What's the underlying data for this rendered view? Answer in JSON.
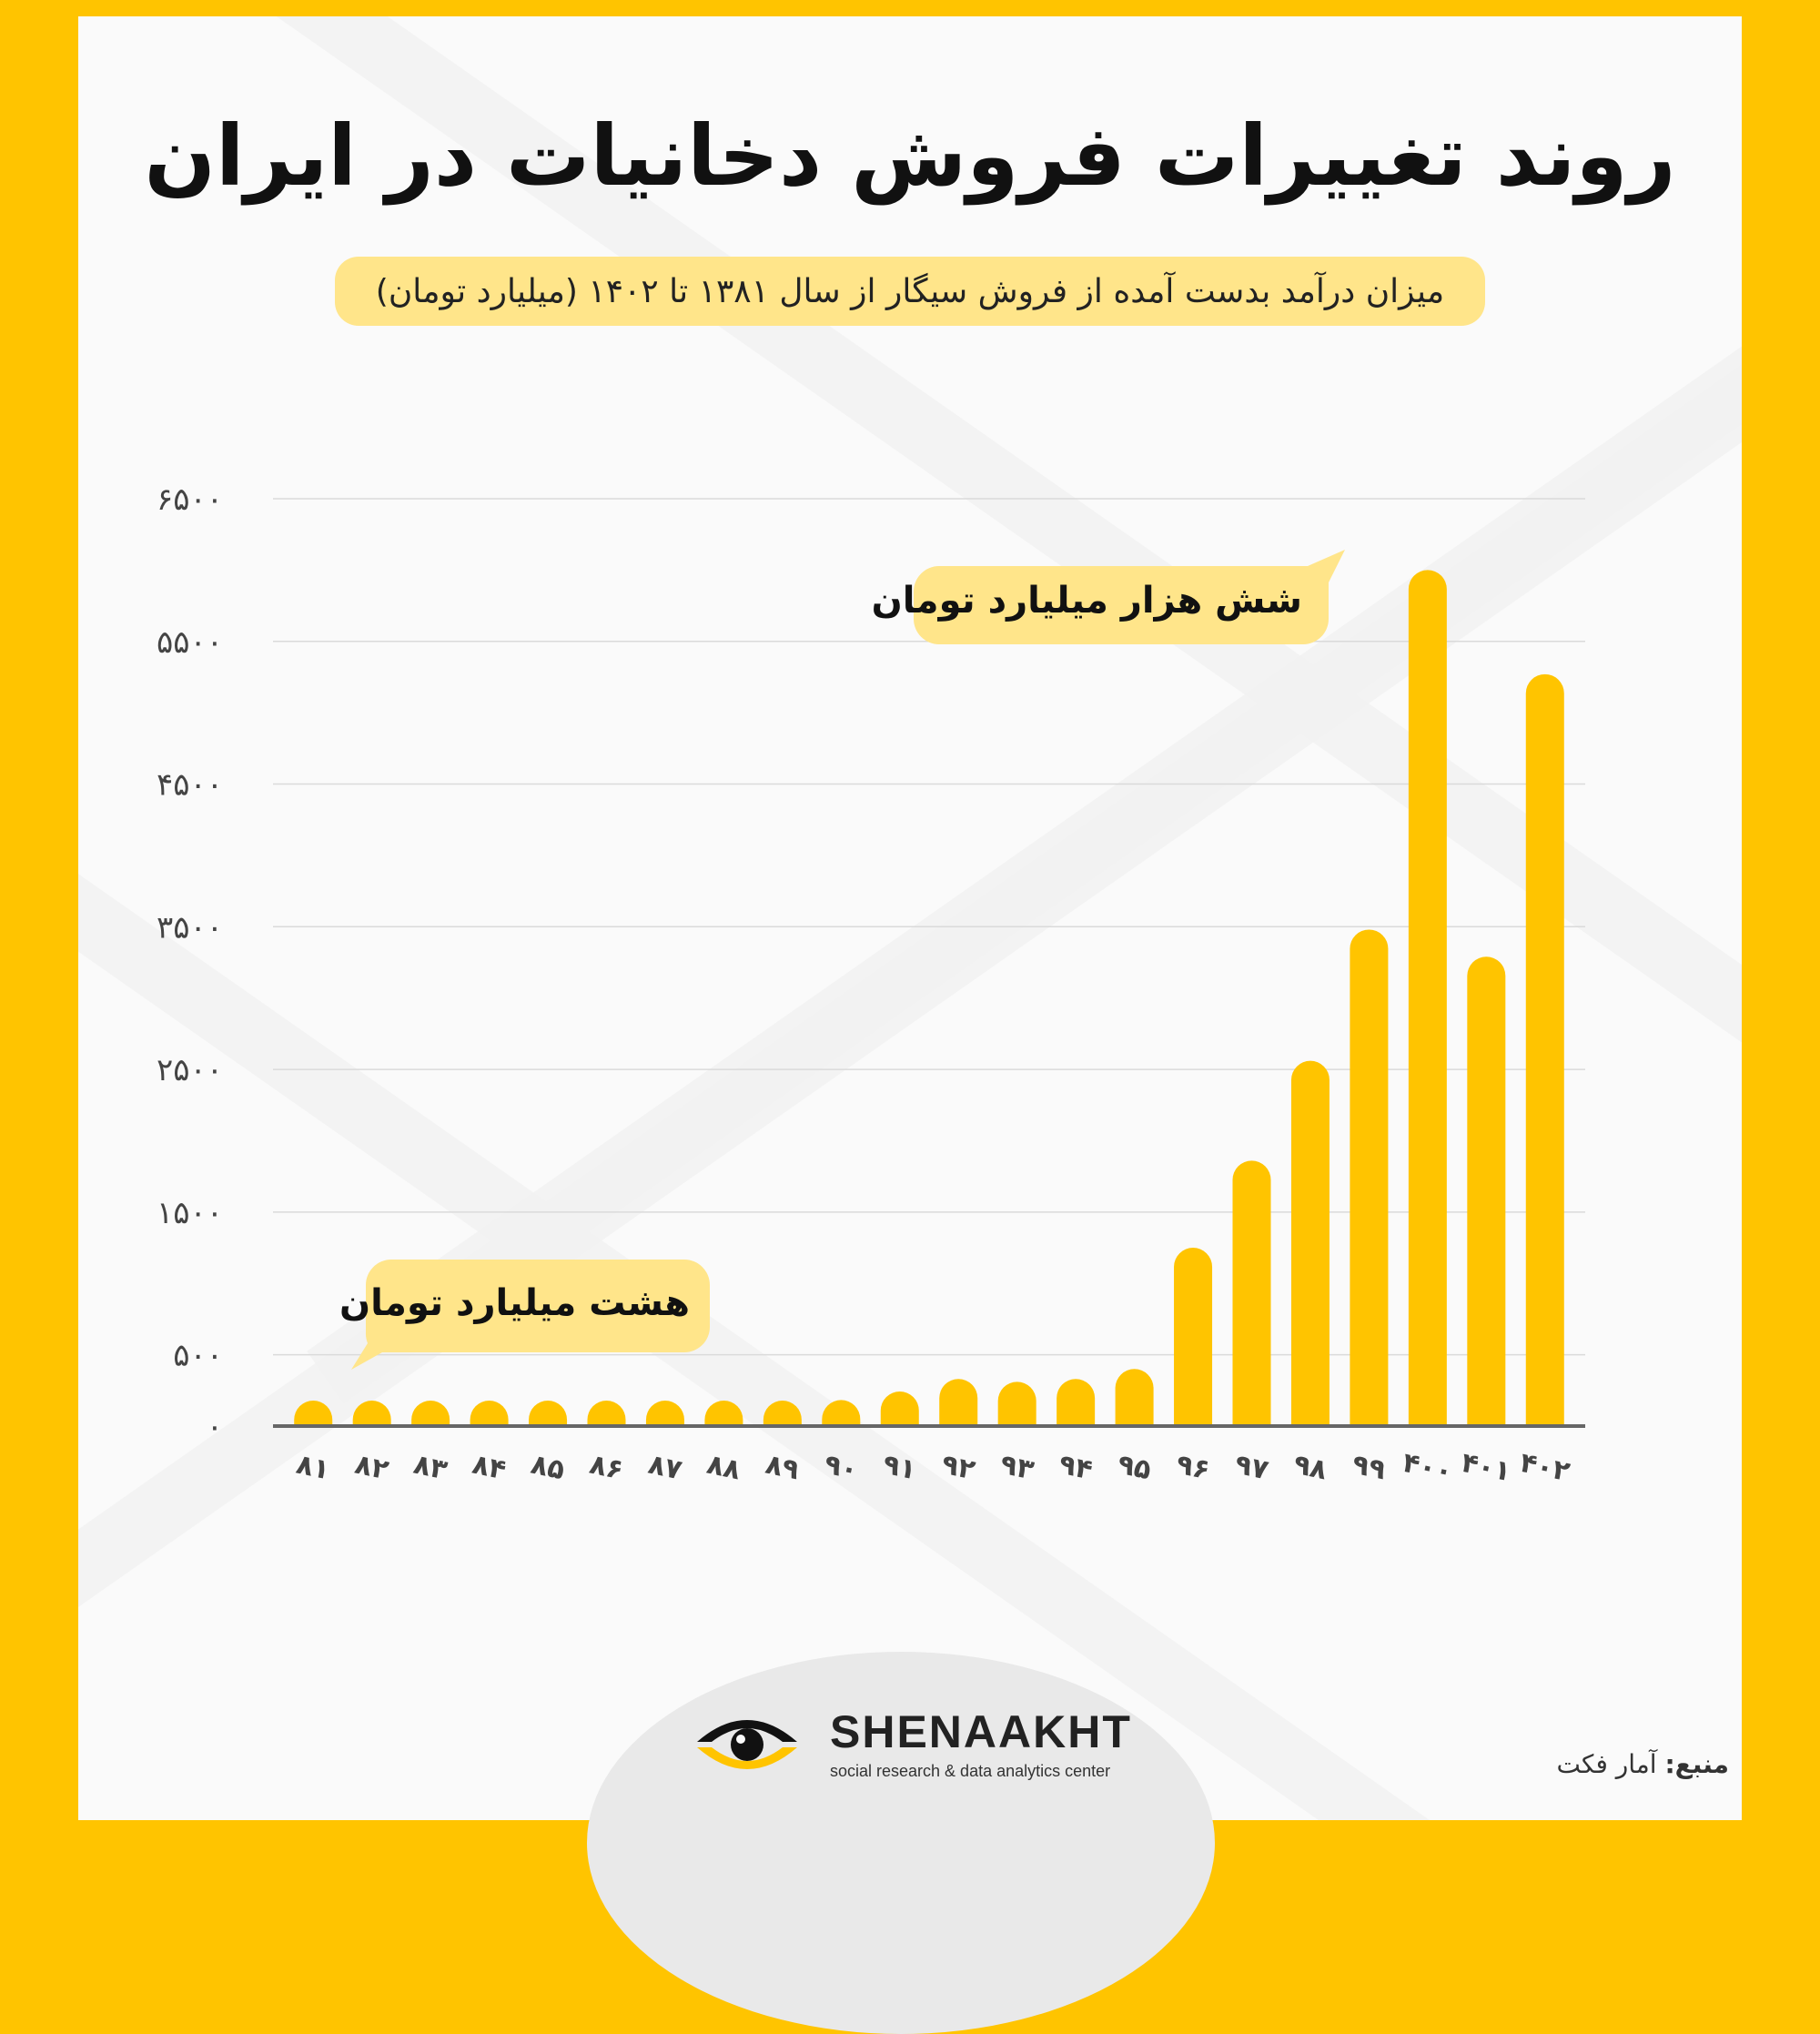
{
  "title": "روند تغییرات فروش دخانیات در ایران",
  "subtitle": "میزان درآمد بدست آمده از فروش سیگار از سال ۱۳۸۱ تا ۱۴۰۲ (میلیارد تومان)",
  "brand": {
    "name": "SHENAAKHT",
    "tagline": "social research & data analytics center"
  },
  "source": {
    "label": "منبع:",
    "value": "آمار فکت"
  },
  "colors": {
    "accent": "#FFC400",
    "pill": "#FFE58A",
    "background": "#FAFAFA",
    "text": "#111111"
  },
  "chart_data": {
    "type": "bar",
    "title": "",
    "xlabel": "",
    "ylabel": "",
    "categories": [
      "۸۱",
      "۸۲",
      "۸۳",
      "۸۴",
      "۸۵",
      "۸۶",
      "۸۷",
      "۸۸",
      "۸۹",
      "۹۰",
      "۹۱",
      "۹۲",
      "۹۳",
      "۹۴",
      "۹۵",
      "۹۶",
      "۹۷",
      "۹۸",
      "۹۹",
      "۴۰۰",
      "۴۰۱",
      "۴۰۲"
    ],
    "values": [
      8,
      8,
      8,
      8,
      20,
      20,
      40,
      85,
      70,
      110,
      230,
      330,
      310,
      330,
      400,
      1250,
      1860,
      2560,
      3480,
      6000,
      3290,
      5270
    ],
    "ylim": [
      0,
      6500
    ],
    "yticks": [
      {
        "value": 0,
        "label": "۰"
      },
      {
        "value": 500,
        "label": "۵۰۰"
      },
      {
        "value": 1500,
        "label": "۱۵۰۰"
      },
      {
        "value": 2500,
        "label": "۲۵۰۰"
      },
      {
        "value": 3500,
        "label": "۳۵۰۰"
      },
      {
        "value": 4500,
        "label": "۴۵۰۰"
      },
      {
        "value": 5500,
        "label": "۵۵۰۰"
      },
      {
        "value": 6500,
        "label": "۶۵۰۰"
      }
    ],
    "grid": true,
    "annotations": [
      {
        "text": "شش هزار میلیارد تومان",
        "target": "۴۰۰"
      },
      {
        "text": "هشت میلیارد تومان",
        "target": "۸۱"
      }
    ]
  }
}
